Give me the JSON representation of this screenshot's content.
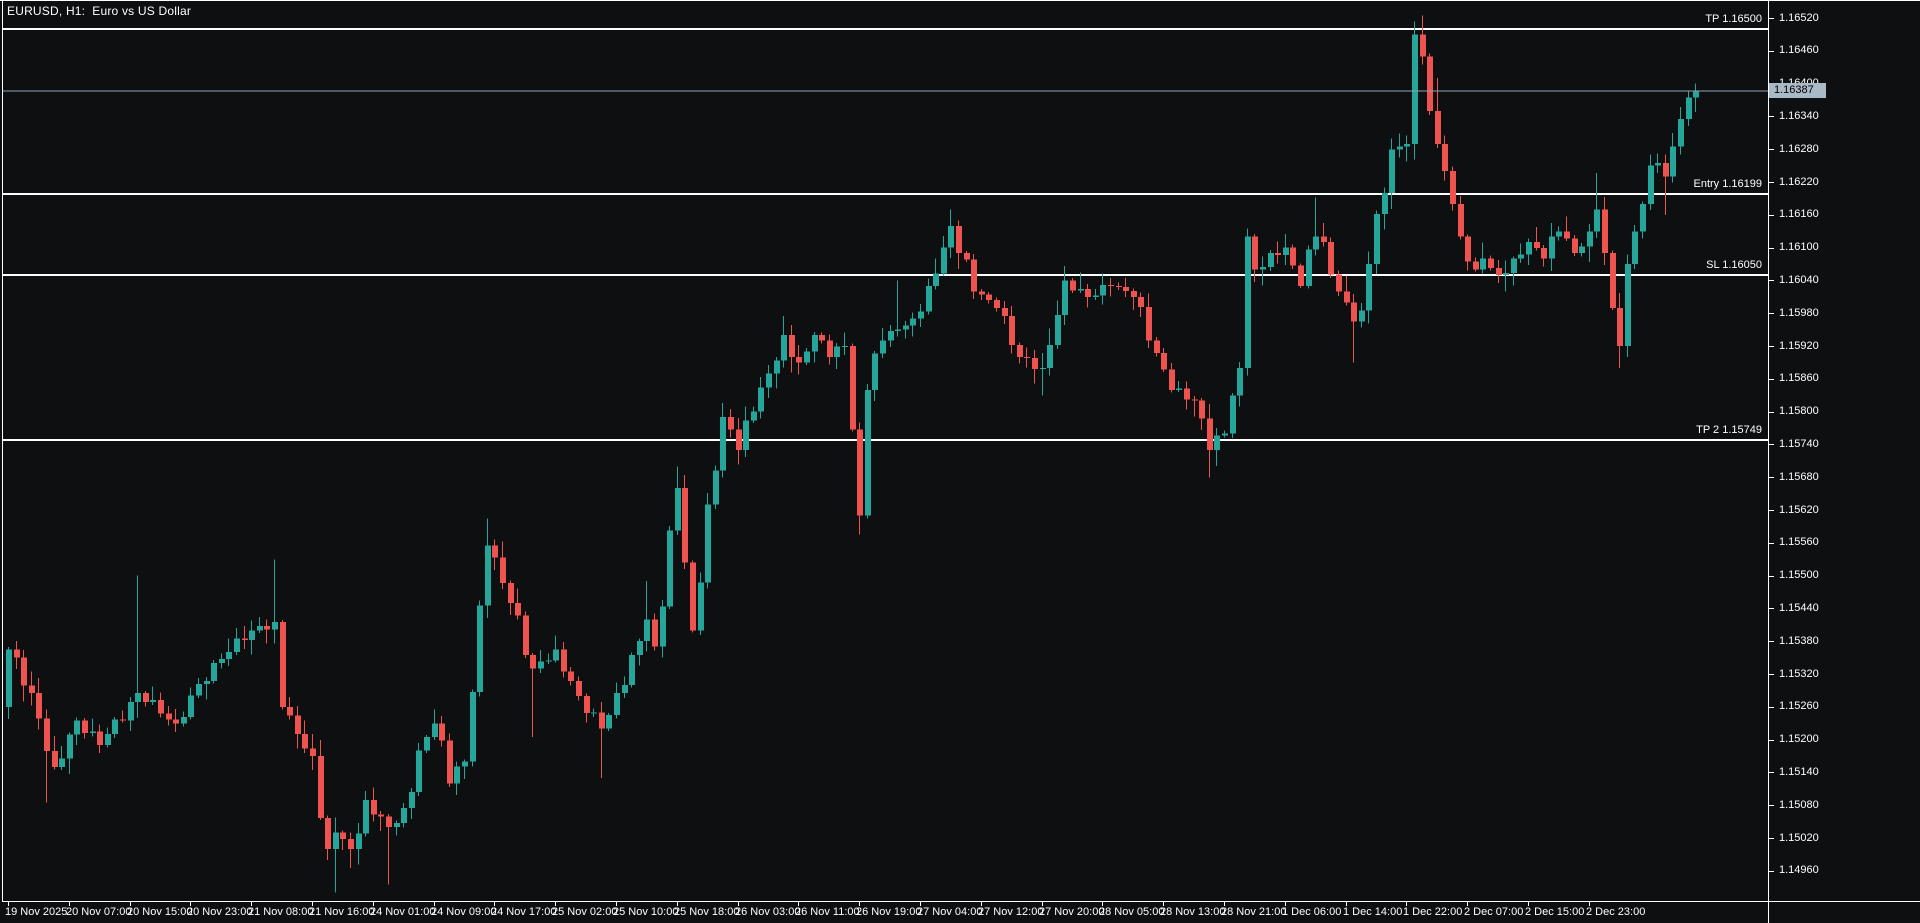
{
  "window": {
    "title": "EURUSD, H1:  Euro vs US Dollar"
  },
  "colors": {
    "background": "#0e0f11",
    "frame": "#ffffff",
    "bull": "#26a69a",
    "bear": "#ef5350",
    "text": "#ffffff",
    "level_line": "#ffffff",
    "price_line": "#8fa3b5",
    "price_badge_bg": "#a9b9c6",
    "price_badge_text": "#000000"
  },
  "chart_data": {
    "type": "candlestick",
    "symbol": "EURUSD",
    "timeframe": "H1",
    "description": "Euro vs US Dollar",
    "ylim": [
      1.14905,
      1.16513
    ],
    "grid": false,
    "price_axis_ticks": [
      "1.16520",
      "1.16460",
      "1.16400",
      "1.16340",
      "1.16280",
      "1.16220",
      "1.16160",
      "1.16100",
      "1.16040",
      "1.15980",
      "1.15920",
      "1.15860",
      "1.15800",
      "1.15740",
      "1.15680",
      "1.15620",
      "1.15560",
      "1.15500",
      "1.15440",
      "1.15380",
      "1.15320",
      "1.15260",
      "1.15200",
      "1.15140",
      "1.15080",
      "1.15020",
      "1.14960"
    ],
    "time_axis_labels": [
      "19 Nov 2025",
      "20 Nov 07:00",
      "20 Nov 15:00",
      "20 Nov 23:00",
      "21 Nov 08:00",
      "21 Nov 16:00",
      "24 Nov 01:00",
      "24 Nov 09:00",
      "24 Nov 17:00",
      "25 Nov 02:00",
      "25 Nov 10:00",
      "25 Nov 18:00",
      "26 Nov 03:00",
      "26 Nov 11:00",
      "26 Nov 19:00",
      "27 Nov 04:00",
      "27 Nov 12:00",
      "27 Nov 20:00",
      "28 Nov 05:00",
      "28 Nov 13:00",
      "28 Nov 21:00",
      "1 Dec 06:00",
      "1 Dec 14:00",
      "1 Dec 22:00",
      "2 Dec 07:00",
      "2 Dec 15:00",
      "2 Dec 23:00"
    ],
    "bars_per_time_tick": 8,
    "bar_count": 223,
    "first_open": 1.1526,
    "close_waypoints": [
      [
        0,
        1.15365
      ],
      [
        3,
        1.15285
      ],
      [
        6,
        1.1515
      ],
      [
        9,
        1.15235
      ],
      [
        12,
        1.1519
      ],
      [
        17,
        1.15285
      ],
      [
        22,
        1.1523
      ],
      [
        27,
        1.1534
      ],
      [
        32,
        1.154
      ],
      [
        35,
        1.15415
      ],
      [
        36,
        1.1526
      ],
      [
        38,
        1.1521
      ],
      [
        40,
        1.1517
      ],
      [
        42,
        1.15
      ],
      [
        43,
        1.1503
      ],
      [
        45,
        1.15
      ],
      [
        47,
        1.1509
      ],
      [
        50,
        1.1504
      ],
      [
        52,
        1.15075
      ],
      [
        54,
        1.1518
      ],
      [
        56,
        1.1523
      ],
      [
        58,
        1.1512
      ],
      [
        60,
        1.1516
      ],
      [
        63,
        1.15555
      ],
      [
        66,
        1.1545
      ],
      [
        69,
        1.1533
      ],
      [
        72,
        1.15365
      ],
      [
        75,
        1.1528
      ],
      [
        78,
        1.1522
      ],
      [
        81,
        1.153
      ],
      [
        84,
        1.1542
      ],
      [
        85,
        1.1537
      ],
      [
        88,
        1.1566
      ],
      [
        90,
        1.154
      ],
      [
        92,
        1.1563
      ],
      [
        94,
        1.1579
      ],
      [
        96,
        1.1573
      ],
      [
        98,
        1.158
      ],
      [
        100,
        1.1587
      ],
      [
        102,
        1.1594
      ],
      [
        104,
        1.1589
      ],
      [
        106,
        1.1594
      ],
      [
        108,
        1.159
      ],
      [
        110,
        1.1592
      ],
      [
        112,
        1.1561
      ],
      [
        113,
        1.1584
      ],
      [
        115,
        1.1593
      ],
      [
        117,
        1.1595
      ],
      [
        119,
        1.1597
      ],
      [
        121,
        1.1603
      ],
      [
        123,
        1.161
      ],
      [
        124,
        1.1614
      ],
      [
        127,
        1.1602
      ],
      [
        130,
        1.1599
      ],
      [
        133,
        1.159
      ],
      [
        136,
        1.1588
      ],
      [
        139,
        1.1604
      ],
      [
        142,
        1.1601
      ],
      [
        145,
        1.1603
      ],
      [
        148,
        1.1601
      ],
      [
        150,
        1.1593
      ],
      [
        153,
        1.1584
      ],
      [
        156,
        1.1582
      ],
      [
        158,
        1.1573
      ],
      [
        160,
        1.1576
      ],
      [
        162,
        1.1588
      ],
      [
        163,
        1.1612
      ],
      [
        164,
        1.1606
      ],
      [
        166,
        1.1609
      ],
      [
        168,
        1.161
      ],
      [
        170,
        1.1603
      ],
      [
        172,
        1.1612
      ],
      [
        173,
        1.1611
      ],
      [
        175,
        1.1602
      ],
      [
        177,
        1.15965
      ],
      [
        178,
        1.15985
      ],
      [
        179,
        1.1607
      ],
      [
        181,
        1.162
      ],
      [
        182,
        1.1628
      ],
      [
        184,
        1.1629
      ],
      [
        185,
        1.1649
      ],
      [
        186,
        1.1645
      ],
      [
        187,
        1.1635
      ],
      [
        188,
        1.1629
      ],
      [
        189,
        1.1624
      ],
      [
        190,
        1.1618
      ],
      [
        191,
        1.1612
      ],
      [
        193,
        1.1606
      ],
      [
        194,
        1.1608
      ],
      [
        196,
        1.1605
      ],
      [
        198,
        1.1608
      ],
      [
        200,
        1.1611
      ],
      [
        202,
        1.1608
      ],
      [
        204,
        1.1613
      ],
      [
        206,
        1.1609
      ],
      [
        208,
        1.1613
      ],
      [
        209,
        1.1617
      ],
      [
        210,
        1.1609
      ],
      [
        211,
        1.1599
      ],
      [
        212,
        1.1592
      ],
      [
        213,
        1.1607
      ],
      [
        214,
        1.1613
      ],
      [
        215,
        1.1618
      ],
      [
        216,
        1.1625
      ],
      [
        217,
        1.16255
      ],
      [
        218,
        1.1623
      ],
      [
        219,
        1.16285
      ],
      [
        220,
        1.16335
      ],
      [
        221,
        1.16375
      ],
      [
        222,
        1.16387
      ]
    ],
    "wick_extremes": [
      [
        5,
        "lo",
        1.15085
      ],
      [
        17,
        "hi",
        1.155
      ],
      [
        35,
        "hi",
        1.1553
      ],
      [
        43,
        "lo",
        1.1492
      ],
      [
        45,
        "lo",
        1.14965
      ],
      [
        50,
        "lo",
        1.14935
      ],
      [
        63,
        "hi",
        1.15605
      ],
      [
        69,
        "lo",
        1.15205
      ],
      [
        78,
        "lo",
        1.1513
      ],
      [
        84,
        "hi",
        1.1549
      ],
      [
        88,
        "hi",
        1.157
      ],
      [
        102,
        "hi",
        1.15975
      ],
      [
        112,
        "lo",
        1.15575
      ],
      [
        117,
        "hi",
        1.1604
      ],
      [
        124,
        "hi",
        1.1617
      ],
      [
        136,
        "lo",
        1.1583
      ],
      [
        158,
        "lo",
        1.1568
      ],
      [
        163,
        "hi",
        1.1613
      ],
      [
        172,
        "hi",
        1.16192
      ],
      [
        177,
        "lo",
        1.1589
      ],
      [
        185,
        "hi",
        1.165
      ],
      [
        186,
        "hi",
        1.16525
      ],
      [
        188,
        "hi",
        1.1641
      ],
      [
        196,
        "lo",
        1.16035
      ],
      [
        209,
        "hi",
        1.16237
      ],
      [
        212,
        "lo",
        1.1588
      ],
      [
        213,
        "lo",
        1.159
      ],
      [
        216,
        "hi",
        1.1627
      ],
      [
        218,
        "lo",
        1.1616
      ],
      [
        222,
        "hi",
        1.164
      ]
    ],
    "annotations": {
      "levels": [
        {
          "name": "tp",
          "label": "TP 1.16500",
          "price": 1.165
        },
        {
          "name": "entry",
          "label": "Entry 1.16199",
          "price": 1.16199
        },
        {
          "name": "sl",
          "label": "SL 1.16050",
          "price": 1.1605
        },
        {
          "name": "tp2",
          "label": "TP 2 1.15749",
          "price": 1.15749
        }
      ],
      "current_price": {
        "label": "1.16387",
        "price": 1.16387
      }
    }
  }
}
